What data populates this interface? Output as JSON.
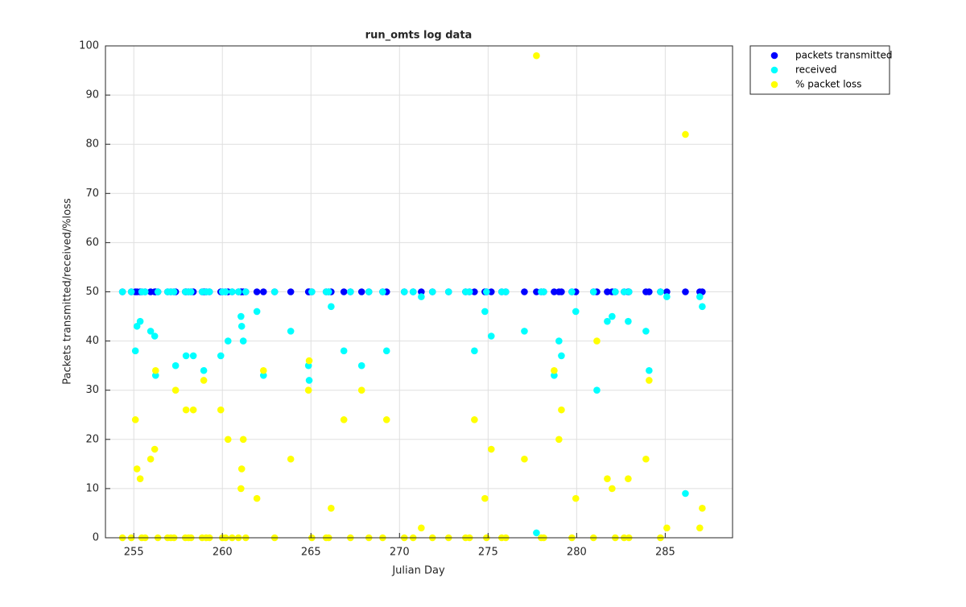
{
  "chart_data": {
    "type": "scatter",
    "title": "run_omts log data",
    "xlabel": "Julian Day",
    "ylabel": "Packets transmitted/received/%loss",
    "x": [
      254.36,
      254.86,
      255.09,
      255.18,
      255.36,
      255.45,
      255.64,
      255.95,
      256.18,
      256.23,
      256.36,
      256.91,
      257.09,
      257.27,
      257.36,
      257.91,
      257.95,
      258.09,
      258.23,
      258.36,
      258.86,
      258.95,
      259.09,
      259.27,
      259.91,
      260.0,
      260.18,
      260.32,
      260.55,
      260.91,
      261.05,
      261.09,
      261.18,
      261.32,
      261.95,
      262.32,
      262.95,
      263.86,
      264.86,
      264.9,
      265.05,
      265.86,
      266.0,
      266.14,
      266.86,
      267.23,
      267.86,
      268.27,
      269.05,
      269.27,
      270.27,
      270.77,
      271.23,
      271.86,
      272.77,
      273.73,
      273.95,
      274.23,
      274.82,
      274.91,
      275.18,
      275.77,
      276.0,
      277.05,
      277.73,
      278.0,
      278.14,
      278.73,
      279.0,
      279.14,
      279.73,
      279.95,
      280.95,
      281.14,
      281.73,
      282.0,
      282.18,
      282.68,
      282.91,
      282.95,
      283.91,
      284.09,
      284.73,
      285.09,
      286.14,
      286.95,
      287.09
    ],
    "series": [
      {
        "name": "packets transmitted",
        "color": "#0000ff",
        "values": [
          50,
          50,
          50,
          50,
          50,
          50,
          50,
          50,
          50,
          50,
          50,
          50,
          50,
          50,
          50,
          50,
          50,
          50,
          50,
          50,
          50,
          50,
          50,
          50,
          50,
          50,
          50,
          50,
          50,
          50,
          50,
          50,
          50,
          50,
          50,
          50,
          50,
          50,
          50,
          50,
          50,
          50,
          50,
          50,
          50,
          50,
          50,
          50,
          50,
          50,
          50,
          50,
          50,
          50,
          50,
          50,
          50,
          50,
          50,
          50,
          50,
          50,
          50,
          50,
          50,
          50,
          50,
          50,
          50,
          50,
          50,
          50,
          50,
          50,
          50,
          50,
          50,
          50,
          50,
          50,
          50,
          50,
          50,
          50,
          50,
          50,
          50
        ]
      },
      {
        "name": "received",
        "color": "#00ffff",
        "values": [
          50,
          50,
          38,
          43,
          44,
          50,
          50,
          42,
          41,
          33,
          50,
          50,
          50,
          50,
          35,
          50,
          37,
          50,
          50,
          37,
          50,
          34,
          50,
          50,
          37,
          50,
          50,
          40,
          50,
          50,
          45,
          43,
          40,
          50,
          46,
          33,
          50,
          42,
          35,
          32,
          50,
          50,
          50,
          47,
          38,
          50,
          35,
          50,
          50,
          38,
          50,
          50,
          49,
          50,
          50,
          50,
          50,
          38,
          46,
          50,
          41,
          50,
          50,
          42,
          1,
          50,
          50,
          33,
          40,
          37,
          50,
          46,
          50,
          30,
          44,
          45,
          50,
          50,
          44,
          50,
          42,
          34,
          50,
          49,
          9,
          49,
          47
        ]
      },
      {
        "name": "% packet loss",
        "color": "#ffff00",
        "values": [
          0,
          0,
          24,
          14,
          12,
          0,
          0,
          16,
          18,
          34,
          0,
          0,
          0,
          0,
          30,
          0,
          26,
          0,
          0,
          26,
          0,
          32,
          0,
          0,
          26,
          0,
          0,
          20,
          0,
          0,
          10,
          14,
          20,
          0,
          8,
          34,
          0,
          16,
          30,
          36,
          0,
          0,
          0,
          6,
          24,
          0,
          30,
          0,
          0,
          24,
          0,
          0,
          2,
          0,
          0,
          0,
          0,
          24,
          8,
          0,
          18,
          0,
          0,
          16,
          98,
          0,
          0,
          34,
          20,
          26,
          0,
          8,
          0,
          40,
          12,
          10,
          0,
          0,
          12,
          0,
          16,
          32,
          0,
          2,
          82,
          2,
          6
        ]
      }
    ],
    "xlim": [
      253.4,
      288.8
    ],
    "xticks": [
      255,
      260,
      265,
      270,
      275,
      280,
      285
    ],
    "ylim": [
      0,
      100
    ],
    "yticks": [
      0,
      10,
      20,
      30,
      40,
      50,
      60,
      70,
      80,
      90,
      100
    ],
    "grid": true,
    "legend": "northeastoutside"
  }
}
